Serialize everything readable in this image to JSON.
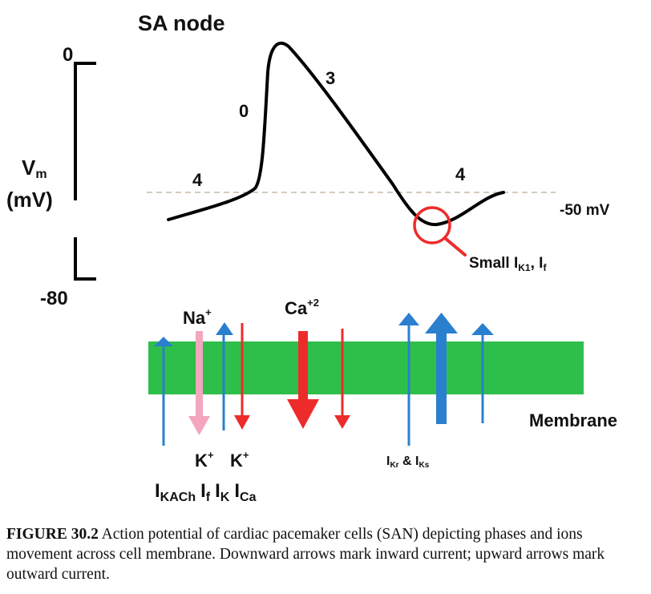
{
  "title": "SA node",
  "y_axis": {
    "top": "0",
    "bottom": "-80",
    "label_line1": "V",
    "label_sub": "m",
    "label_line2": "(mV)"
  },
  "phases": {
    "left_4": "4",
    "zero": "0",
    "three": "3",
    "right_4": "4"
  },
  "threshold_label": "-50 mV",
  "small_currents": {
    "prefix": "Small I",
    "sub1": "K1",
    "mid": ", I",
    "sub2": "f"
  },
  "ions": {
    "na": "Na",
    "na_sup": "+",
    "ca": "Ca",
    "ca_sup": "+2",
    "k1": "K",
    "k1_sup": "+",
    "k2": "K",
    "k2_sup": "+"
  },
  "membrane_label": "Membrane",
  "ikr_iks": {
    "a": "I",
    "a_sub": "Kr",
    "mid": " & I",
    "b_sub": "Ks"
  },
  "currents": {
    "i1": "I",
    "i1_sub": "KACh",
    "i2": "I",
    "i2_sub": "f",
    "i3": "I",
    "i3_sub": "K",
    "i4": "I",
    "i4_sub": "Ca"
  },
  "colors": {
    "membrane": "#2ebf4a",
    "blue": "#2a7fcf",
    "red": "#ee2b2b",
    "pink": "#f3a6be",
    "threshold": "#c9b8aa"
  },
  "caption": {
    "label": "FIGURE 30.2",
    "text": " Action potential of cardiac pacemaker cells (SAN) depicting phases and ions movement across cell membrane. Downward arrows mark inward current; upward arrows mark outward current."
  }
}
